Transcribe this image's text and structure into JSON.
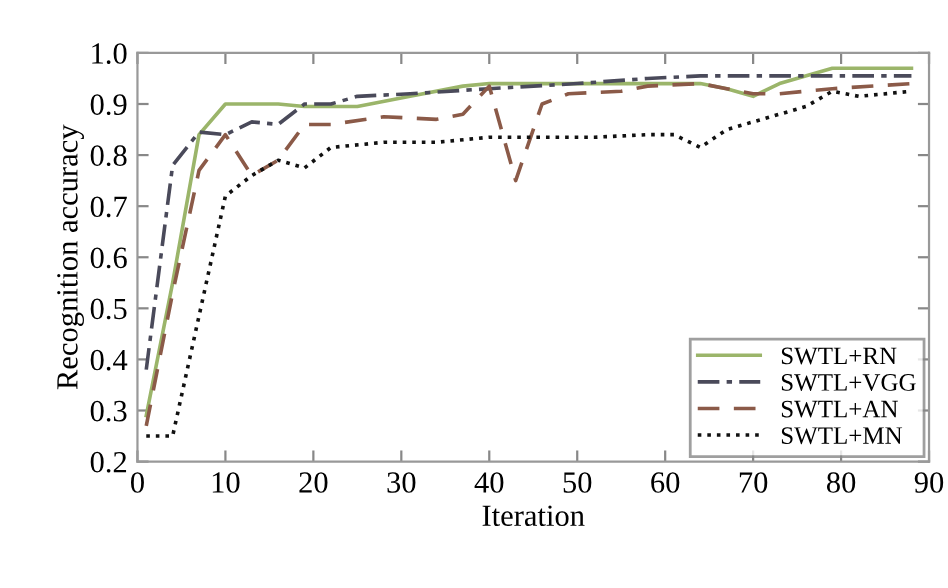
{
  "chart_data": {
    "type": "line",
    "xlabel": "Iteration",
    "ylabel": "Recognition accuracy",
    "xlim": [
      0,
      90
    ],
    "xticks": [
      0,
      10,
      20,
      30,
      40,
      50,
      60,
      70,
      80,
      90
    ],
    "ylim": [
      0.2,
      1.0
    ],
    "yticks": [
      {
        "value": 0.2,
        "label": "0.2"
      },
      {
        "value": 0.3,
        "label": "0.3"
      },
      {
        "value": 0.4,
        "label": "0.4"
      },
      {
        "value": 0.5,
        "label": "0.5"
      },
      {
        "value": 0.6,
        "label": "0.6"
      },
      {
        "value": 0.7,
        "label": "0.7"
      },
      {
        "value": 0.8,
        "label": "0.8"
      },
      {
        "value": 0.9,
        "label": "0.9"
      },
      {
        "value": 1.0,
        "label": "1.0"
      }
    ],
    "grid": false,
    "legend": "bottom right",
    "marker": "none",
    "series": [
      {
        "name": "SWTL+RN",
        "color": "#9bb56a",
        "line_style": "solid",
        "x": [
          1,
          4,
          7,
          10,
          16,
          19,
          25,
          31,
          37,
          40,
          50,
          60,
          64,
          67,
          70,
          73,
          79,
          88
        ],
        "values": [
          0.29,
          0.55,
          0.84,
          0.9,
          0.9,
          0.895,
          0.895,
          0.915,
          0.935,
          0.94,
          0.94,
          0.94,
          0.94,
          0.93,
          0.915,
          0.94,
          0.97,
          0.97
        ]
      },
      {
        "name": "SWTL+VGG",
        "color": "#4a4a5a",
        "line_style": "dashdot",
        "x": [
          1,
          4,
          7,
          10,
          13,
          16,
          19,
          22,
          25,
          31,
          40,
          50,
          58,
          64,
          70,
          80,
          88
        ],
        "values": [
          0.38,
          0.78,
          0.845,
          0.84,
          0.865,
          0.86,
          0.9,
          0.9,
          0.915,
          0.92,
          0.93,
          0.94,
          0.95,
          0.955,
          0.955,
          0.955,
          0.955
        ]
      },
      {
        "name": "SWTL+AN",
        "color": "#8b5a48",
        "line_style": "dashed",
        "x": [
          1,
          4,
          7,
          10,
          13,
          16,
          19,
          22,
          28,
          34,
          37,
          40,
          43,
          46,
          49,
          55,
          58,
          64,
          67,
          70,
          73,
          79,
          88
        ],
        "values": [
          0.27,
          0.53,
          0.77,
          0.84,
          0.76,
          0.79,
          0.86,
          0.86,
          0.875,
          0.87,
          0.88,
          0.935,
          0.75,
          0.9,
          0.92,
          0.925,
          0.935,
          0.94,
          0.93,
          0.92,
          0.92,
          0.93,
          0.94
        ]
      },
      {
        "name": "SWTL+MN",
        "color": "#111111",
        "line_style": "dotted",
        "x": [
          1,
          4,
          10,
          13,
          16,
          19,
          22,
          28,
          34,
          40,
          46,
          52,
          58,
          61,
          64,
          67,
          73,
          76,
          79,
          82,
          88
        ],
        "values": [
          0.25,
          0.25,
          0.72,
          0.76,
          0.79,
          0.775,
          0.815,
          0.825,
          0.825,
          0.835,
          0.835,
          0.835,
          0.84,
          0.84,
          0.815,
          0.85,
          0.88,
          0.895,
          0.925,
          0.915,
          0.925
        ]
      }
    ]
  }
}
